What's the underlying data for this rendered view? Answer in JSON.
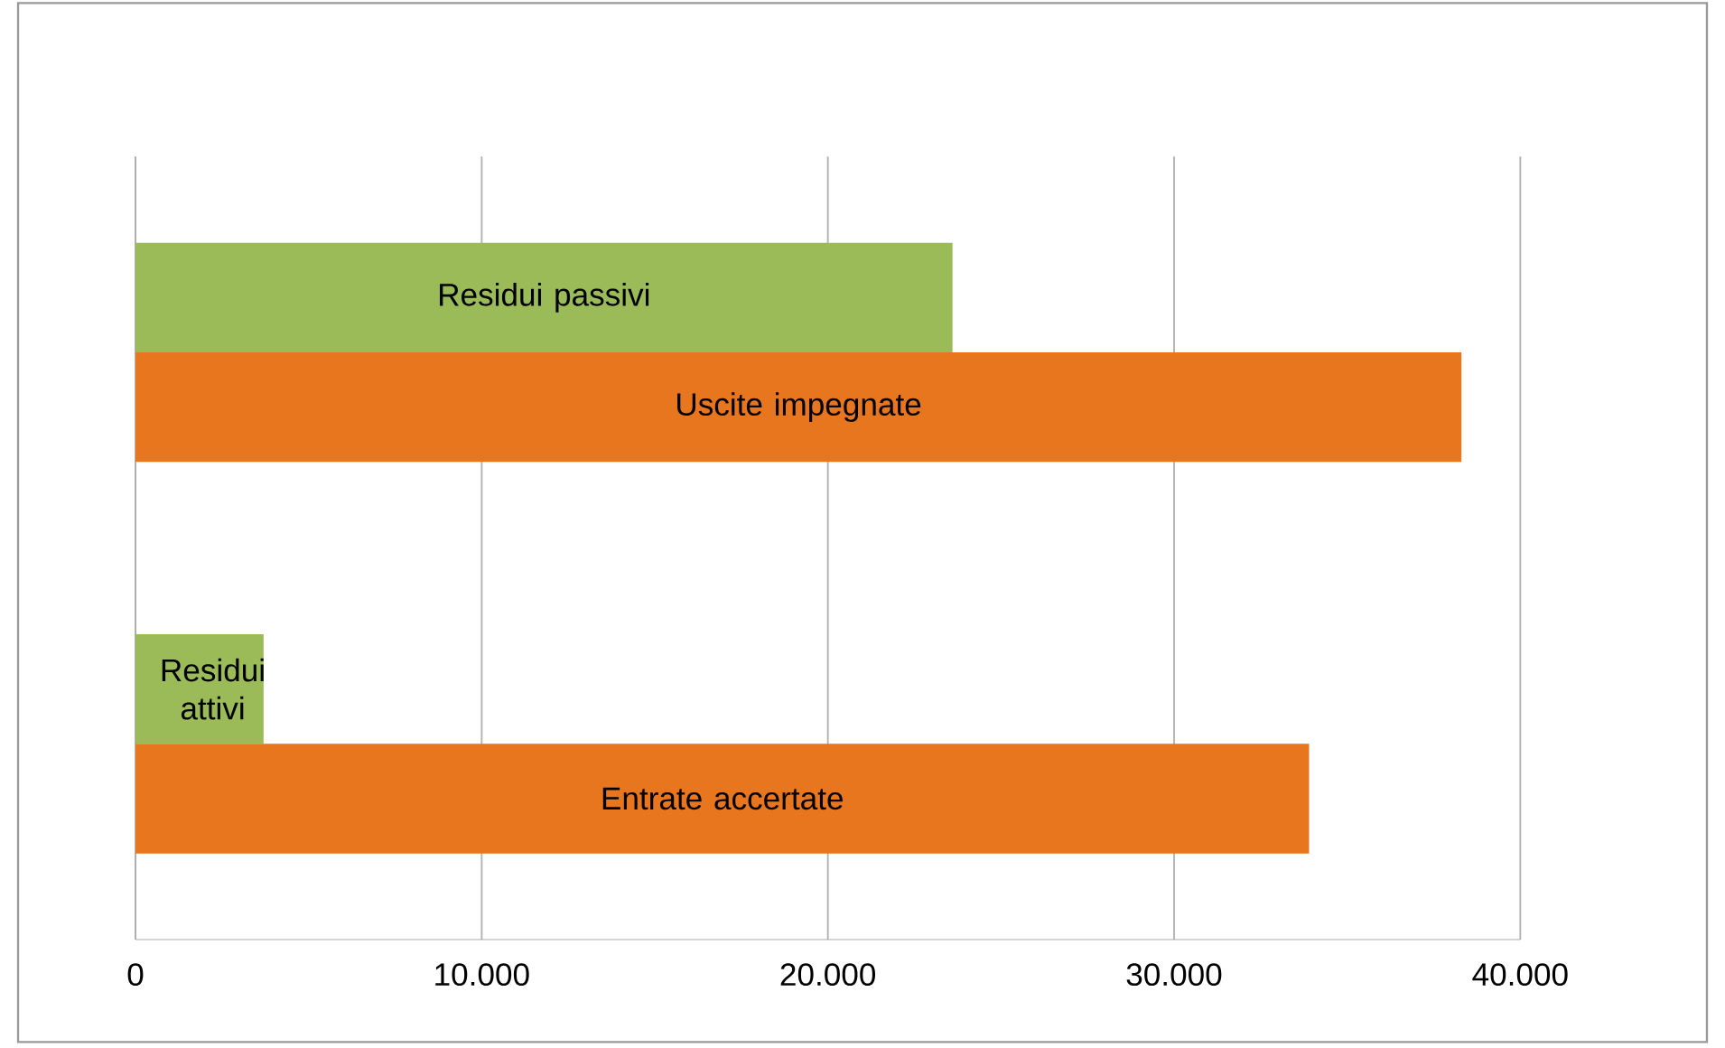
{
  "chart_data": {
    "type": "bar",
    "orientation": "horizontal",
    "categories": [
      null,
      null
    ],
    "series": [
      {
        "name": "Residui passivi",
        "color": "#9bbb59",
        "values": [
          23600,
          null
        ]
      },
      {
        "name": "Uscite impegnate",
        "color": "#e8761f",
        "values": [
          38300,
          null
        ]
      },
      {
        "name": "Residui attivi",
        "color": "#9bbb59",
        "values": [
          null,
          3700
        ]
      },
      {
        "name": "Entrate accertate",
        "color": "#e8761f",
        "values": [
          null,
          33900
        ]
      }
    ],
    "xlim": [
      0,
      40000
    ],
    "xticks": [
      0,
      {
        "value": 10000,
        "label": "10.000"
      },
      {
        "value": 20000,
        "label": "20.000"
      },
      {
        "value": 30000,
        "label": "30.000"
      },
      {
        "value": 40000,
        "label": "40.000"
      }
    ],
    "grid": "x",
    "tick_labels": "x"
  }
}
